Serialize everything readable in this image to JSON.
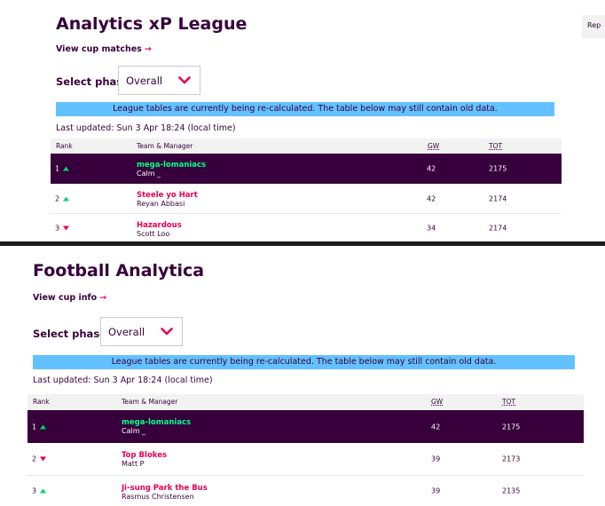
{
  "side_button": {
    "label": "Rep"
  },
  "panels": [
    {
      "title": "Analytics xP League",
      "cup_link": "View cup matches",
      "phase_label": "Select phase",
      "phase_value": "Overall",
      "notice": "League tables are currently being re-calculated. The table below may still contain old data.",
      "last_updated": "Last updated: Sun 3 Apr 18:24 (local time)",
      "columns": {
        "rank": "Rank",
        "team": "Team & Manager",
        "gw": "GW",
        "tot": "TOT"
      },
      "rows": [
        {
          "rank": "1",
          "movement": "up",
          "team": "mega-lomaniacs",
          "manager": "Calm _",
          "gw": "42",
          "tot": "2175",
          "active": true
        },
        {
          "rank": "2",
          "movement": "up",
          "team": "Steele yo Hart",
          "manager": "Reyan Abbasi",
          "gw": "42",
          "tot": "2174",
          "active": false
        },
        {
          "rank": "3",
          "movement": "down",
          "team": "Hazardous",
          "manager": "Scott Loo",
          "gw": "34",
          "tot": "2174",
          "active": false
        }
      ]
    },
    {
      "title": "Football Analytica",
      "cup_link": "View cup info",
      "phase_label": "Select phase",
      "phase_value": "Overall",
      "notice": "League tables are currently being re-calculated. The table below may still contain old data.",
      "last_updated": "Last updated: Sun 3 Apr 18:24 (local time)",
      "columns": {
        "rank": "Rank",
        "team": "Team & Manager",
        "gw": "GW",
        "tot": "TOT"
      },
      "rows": [
        {
          "rank": "1",
          "movement": "up",
          "team": "mega-lomaniacs",
          "manager": "Calm _",
          "gw": "42",
          "tot": "2175",
          "active": true
        },
        {
          "rank": "2",
          "movement": "down",
          "team": "Top Blokes",
          "manager": "Matt P",
          "gw": "39",
          "tot": "2173",
          "active": false
        },
        {
          "rank": "3",
          "movement": "up",
          "team": "Ji-sung Park the Bus",
          "manager": "Rasmus Christensen",
          "gw": "39",
          "tot": "2135",
          "active": false
        }
      ]
    }
  ],
  "colors": {
    "brand": "#37003c",
    "accent": "#e90052",
    "highlight": "#00ff87",
    "notice": "#63c1ff",
    "up": "#01d36b",
    "down": "#e90052"
  }
}
